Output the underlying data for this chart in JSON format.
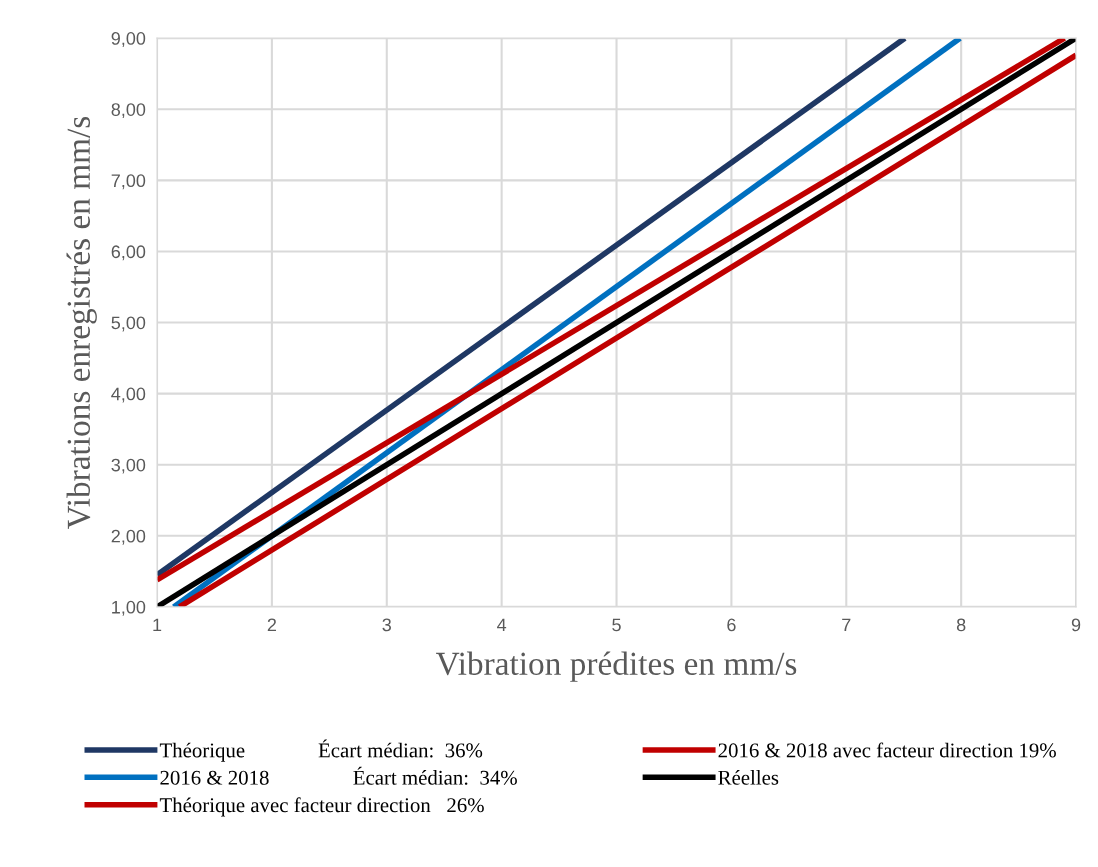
{
  "chart_data": {
    "type": "line",
    "xlabel": "Vibration prédites en mm/s",
    "ylabel": "Vibrations enregistrés en mm/s",
    "xlim": [
      1,
      9
    ],
    "xticks": [
      1,
      2,
      3,
      4,
      5,
      6,
      7,
      8,
      9
    ],
    "ylim": [
      1,
      9
    ],
    "yticks": [
      {
        "value": 1,
        "label": "1,00"
      },
      {
        "value": 2,
        "label": "2,00"
      },
      {
        "value": 3,
        "label": "3,00"
      },
      {
        "value": 4,
        "label": "4,00"
      },
      {
        "value": 5,
        "label": "5,00"
      },
      {
        "value": 6,
        "label": "6,00"
      },
      {
        "value": 7,
        "label": "7,00"
      },
      {
        "value": 8,
        "label": "8,00"
      },
      {
        "value": 9,
        "label": "9,00"
      }
    ],
    "grid": true,
    "legend": "bottom",
    "marker": "none",
    "line_style": "solid",
    "series": [
      {
        "name": "Théorique              Écart médian:  36%",
        "color": "#1f3864",
        "x": [
          1,
          7.51
        ],
        "values": [
          1.45,
          9
        ]
      },
      {
        "name": "2016 & 2018                Écart médian:  34%",
        "color": "#0070c0",
        "x": [
          1.145,
          7.99
        ],
        "values": [
          1,
          9
        ]
      },
      {
        "name": "Théorique avec facteur direction   26%",
        "color": "#c00000",
        "x": [
          1,
          8.9
        ],
        "values": [
          1.38,
          9
        ]
      },
      {
        "name": "2016 & 2018 avec facteur direction 19%",
        "color": "#c00000",
        "x": [
          1.195,
          9
        ],
        "values": [
          1,
          8.76
        ]
      },
      {
        "name": "Réelles",
        "color": "#000000",
        "x": [
          1,
          9
        ],
        "values": [
          1,
          9
        ]
      }
    ]
  }
}
